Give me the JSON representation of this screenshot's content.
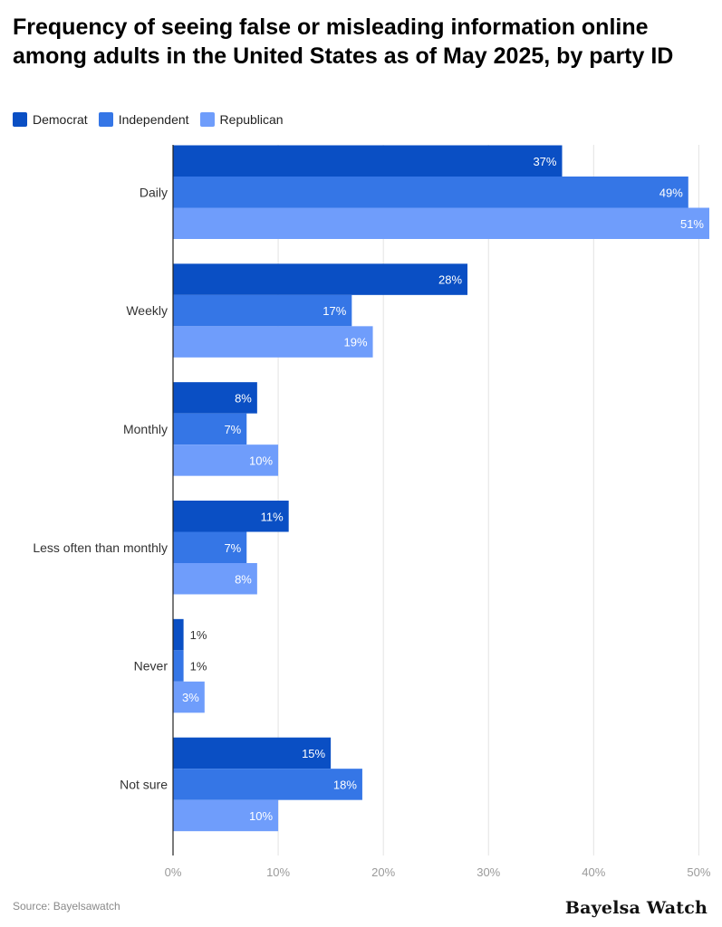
{
  "title": "Frequency of seeing false or misleading information online among adults in the United States as of May 2025, by party ID",
  "source": "Source: Bayelsawatch",
  "brand": "Bayelsa Watch",
  "chart_data": {
    "type": "bar",
    "orientation": "horizontal",
    "title": "Frequency of seeing false or misleading information online among adults in the United States as of May 2025, by party ID",
    "xlabel": "",
    "ylabel": "",
    "categories": [
      "Daily",
      "Weekly",
      "Monthly",
      "Less often than monthly",
      "Never",
      "Not sure"
    ],
    "series": [
      {
        "name": "Democrat",
        "color": "#0a4fc4",
        "values": [
          37,
          28,
          8,
          11,
          1,
          15
        ]
      },
      {
        "name": "Independent",
        "color": "#3576e6",
        "values": [
          49,
          17,
          7,
          7,
          1,
          18
        ]
      },
      {
        "name": "Republican",
        "color": "#6f9dfb",
        "values": [
          51,
          19,
          10,
          8,
          3,
          10
        ]
      }
    ],
    "value_suffix": "%",
    "xlim": [
      0,
      51
    ],
    "x_ticks": [
      "0%",
      "10%",
      "20%",
      "30%",
      "40%",
      "50%"
    ],
    "x_tick_values": [
      0,
      10,
      20,
      30,
      40,
      50
    ],
    "grid": "vertical",
    "legend_position": "top-left"
  }
}
